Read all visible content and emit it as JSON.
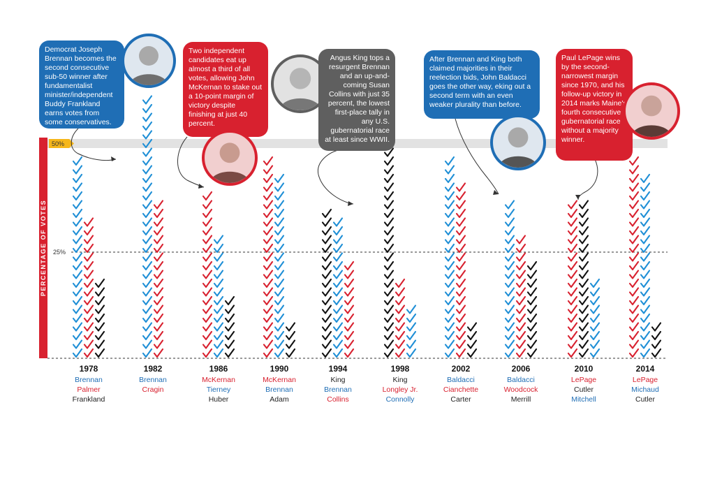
{
  "chart_data": {
    "type": "bar",
    "ylabel": "PERCENTAGE OF VOTES",
    "reference_lines": [
      {
        "value": 50,
        "label": "50%"
      },
      {
        "value": 25,
        "label": "25%"
      }
    ],
    "ylim": [
      0,
      50
    ],
    "years": [
      {
        "year": "1978",
        "candidates": [
          {
            "name": "Brennan",
            "party": "dem",
            "value": 48
          },
          {
            "name": "Palmer",
            "party": "rep",
            "value": 34
          },
          {
            "name": "Frankland",
            "party": "ind",
            "value": 18
          }
        ]
      },
      {
        "year": "1982",
        "candidates": [
          {
            "name": "Brennan",
            "party": "dem",
            "value": 62
          },
          {
            "name": "Cragin",
            "party": "rep",
            "value": 38
          }
        ]
      },
      {
        "year": "1986",
        "candidates": [
          {
            "name": "McKernan",
            "party": "rep",
            "value": 40
          },
          {
            "name": "Tierney",
            "party": "dem",
            "value": 30
          },
          {
            "name": "Huber",
            "party": "ind",
            "value": 15
          }
        ]
      },
      {
        "year": "1990",
        "candidates": [
          {
            "name": "McKernan",
            "party": "rep",
            "value": 47
          },
          {
            "name": "Brennan",
            "party": "dem",
            "value": 44
          },
          {
            "name": "Adam",
            "party": "ind",
            "value": 9
          }
        ]
      },
      {
        "year": "1994",
        "candidates": [
          {
            "name": "King",
            "party": "ind",
            "value": 35
          },
          {
            "name": "Brennan",
            "party": "dem",
            "value": 34
          },
          {
            "name": "Collins",
            "party": "rep",
            "value": 23
          }
        ]
      },
      {
        "year": "1998",
        "candidates": [
          {
            "name": "King",
            "party": "ind",
            "value": 59
          },
          {
            "name": "Longley Jr.",
            "party": "rep",
            "value": 19
          },
          {
            "name": "Connolly",
            "party": "dem",
            "value": 12
          }
        ]
      },
      {
        "year": "2002",
        "candidates": [
          {
            "name": "Baldacci",
            "party": "dem",
            "value": 47
          },
          {
            "name": "Cianchette",
            "party": "rep",
            "value": 41
          },
          {
            "name": "Carter",
            "party": "ind",
            "value": 9
          }
        ]
      },
      {
        "year": "2006",
        "candidates": [
          {
            "name": "Baldacci",
            "party": "dem",
            "value": 38
          },
          {
            "name": "Woodcock",
            "party": "rep",
            "value": 30
          },
          {
            "name": "Merrill",
            "party": "ind",
            "value": 22
          }
        ]
      },
      {
        "year": "2010",
        "candidates": [
          {
            "name": "LePage",
            "party": "rep",
            "value": 38
          },
          {
            "name": "Cutler",
            "party": "ind",
            "value": 37
          },
          {
            "name": "Mitchell",
            "party": "dem",
            "value": 19
          }
        ]
      },
      {
        "year": "2014",
        "candidates": [
          {
            "name": "LePage",
            "party": "rep",
            "value": 48
          },
          {
            "name": "Michaud",
            "party": "dem",
            "value": 43
          },
          {
            "name": "Cutler",
            "party": "ind",
            "value": 8
          }
        ]
      }
    ]
  },
  "colors": {
    "dem": "#1f8fd6",
    "rep": "#d8212f",
    "ind": "#111111",
    "dem_label": "#1f6eb5",
    "rep_label": "#d8212f",
    "ind_label": "#222222",
    "accent": "#f6b71a"
  },
  "annotations": [
    {
      "text": "Democrat Joseph Brennan becomes the second consecutive sub-50 winner after fundamentalist minister/independent Buddy Frankland earns votes from some conservatives."
    },
    {
      "text": "Two independent candidates eat up almost a third of all votes, allowing John McKernan to stake out a 10-point margin of victory despite finishing at just 40 percent."
    },
    {
      "text": "Angus King tops a resurgent Brennan and an up-and-coming Susan Collins with just 35 percent, the lowest first-place tally in any U.S. gubernatorial race at least since WWII."
    },
    {
      "text": "After Brennan and King both claimed majorities in their reelection bids, John Baldacci goes the other way, eking out a second term with an even weaker plurality than before."
    },
    {
      "text": "Paul LePage wins by the second-narrowest margin since 1970, and his follow-up victory in 2014 marks Maine's fourth consecutive gubernatorial race without a majority winner."
    }
  ]
}
